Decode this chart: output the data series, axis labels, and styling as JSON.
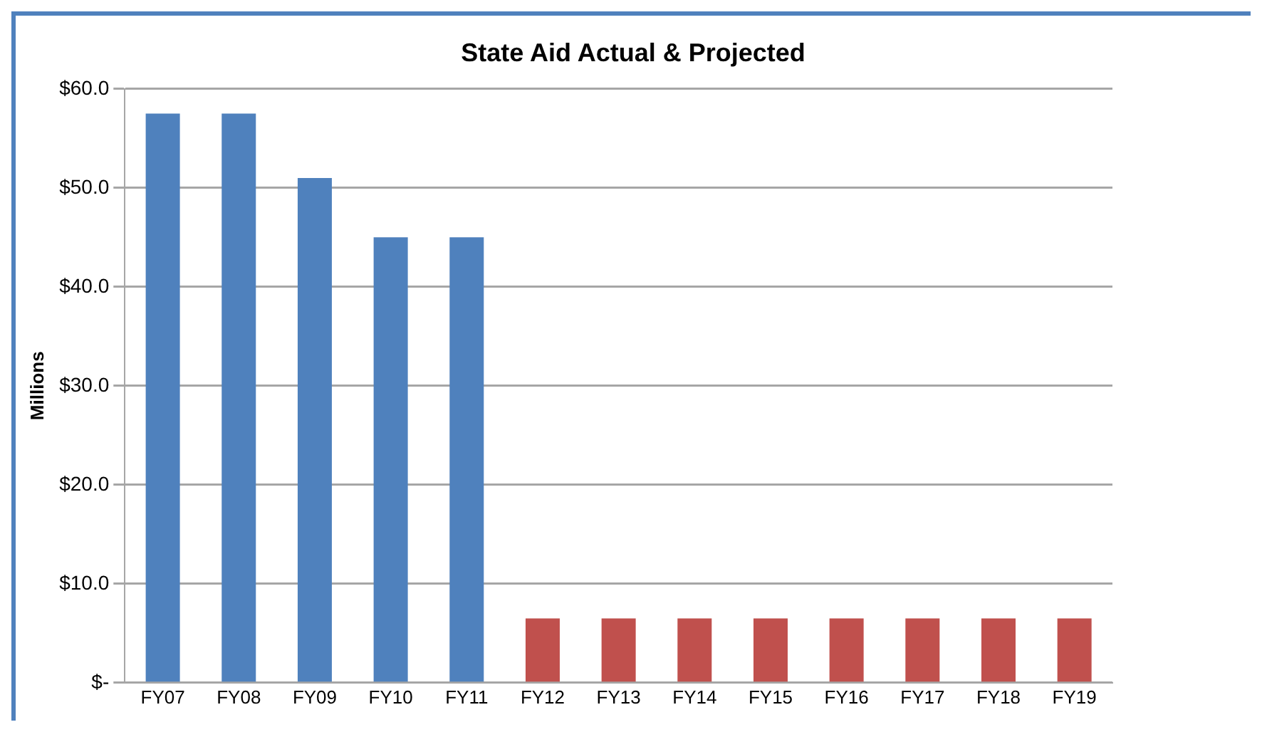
{
  "chart_data": {
    "type": "bar",
    "title": "State Aid Actual & Projected",
    "ylabel": "Millions",
    "categories": [
      "FY07",
      "FY08",
      "FY09",
      "FY10",
      "FY11",
      "FY12",
      "FY13",
      "FY14",
      "FY15",
      "FY16",
      "FY17",
      "FY18",
      "FY19"
    ],
    "values": [
      57.5,
      57.5,
      51,
      45,
      45,
      6.5,
      6.5,
      6.5,
      6.5,
      6.5,
      6.5,
      6.5,
      6.5
    ],
    "colors": [
      "#4f81bd",
      "#4f81bd",
      "#4f81bd",
      "#4f81bd",
      "#4f81bd",
      "#c0504d",
      "#c0504d",
      "#c0504d",
      "#c0504d",
      "#c0504d",
      "#c0504d",
      "#c0504d",
      "#c0504d"
    ],
    "ylim": [
      0,
      60
    ],
    "yticks": [
      {
        "value": 0,
        "label": "$-"
      },
      {
        "value": 10,
        "label": "$10.0"
      },
      {
        "value": 20,
        "label": "$20.0"
      },
      {
        "value": 30,
        "label": "$30.0"
      },
      {
        "value": 40,
        "label": "$40.0"
      },
      {
        "value": 50,
        "label": "$50.0"
      },
      {
        "value": 60,
        "label": "$60.0"
      }
    ],
    "grid": "y",
    "legend": false
  }
}
